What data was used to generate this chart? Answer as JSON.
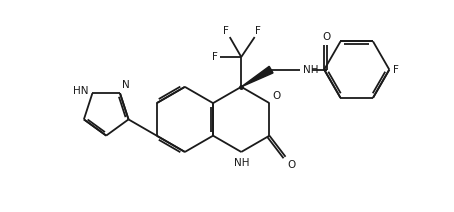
{
  "background_color": "#ffffff",
  "line_color": "#1a1a1a",
  "line_width": 1.3,
  "font_size": 7.5,
  "fig_width": 4.54,
  "fig_height": 2.12,
  "dpi": 100,
  "xlim": [
    0,
    9.2
  ],
  "ylim": [
    0.5,
    6.0
  ]
}
